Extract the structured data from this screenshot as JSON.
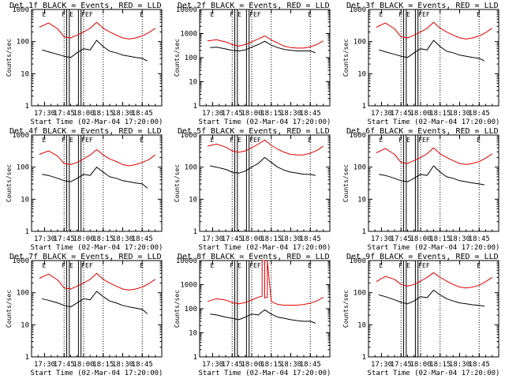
{
  "colors": {
    "events": "#000000",
    "lld": "#e00000",
    "axes": "#000000"
  },
  "time_ticks": [
    "17:30",
    "17:45",
    "18:00",
    "18:15",
    "18:30",
    "18:45"
  ],
  "dotted_lines_times": [
    "17:45",
    "18:00",
    "18:15",
    "18:45"
  ],
  "chart_data": [
    {
      "type": "line",
      "title": "Det 1f BLACK = Events, RED = LLD",
      "xlabel": "Start Time (02-Mar-04 17:20:00)",
      "ylabel": "Counts/sec",
      "yscale": "log",
      "ylim": [
        1,
        1000
      ],
      "yticks": [
        "1",
        "10",
        "100",
        "1000"
      ],
      "flags": [
        "E",
        "F",
        "E",
        "F",
        "E",
        "F",
        "E"
      ],
      "vertical_lines": [
        "17:47",
        "17:49",
        "17:56",
        "17:58"
      ],
      "series": [
        {
          "name": "RED",
          "role": "lld",
          "x": [
            "17:26",
            "17:33",
            "17:40",
            "17:45",
            "17:50",
            "17:55",
            "18:00",
            "18:05",
            "18:10",
            "18:15",
            "18:20",
            "18:25",
            "18:30",
            "18:35",
            "18:40",
            "18:45",
            "18:50",
            "18:55"
          ],
          "values": [
            280,
            380,
            250,
            140,
            130,
            160,
            200,
            260,
            400,
            260,
            200,
            160,
            130,
            120,
            130,
            150,
            190,
            260
          ]
        },
        {
          "name": "BLACK",
          "role": "events",
          "x": [
            "17:28",
            "17:33",
            "17:40",
            "17:45",
            "17:50",
            "17:55",
            "18:00",
            "18:05",
            "18:10",
            "18:15",
            "18:20",
            "18:25",
            "18:30",
            "18:35",
            "18:40",
            "18:45",
            "18:49"
          ],
          "values": [
            55,
            48,
            40,
            35,
            32,
            45,
            60,
            55,
            110,
            70,
            50,
            45,
            38,
            35,
            32,
            30,
            25
          ]
        }
      ]
    },
    {
      "type": "line",
      "title": "Det 2f BLACK = Events, RED = LLD",
      "xlabel": "Start Time (02-Mar-04 17:20:00)",
      "ylabel": "Counts/sec",
      "yscale": "log",
      "ylim": [
        1,
        10000
      ],
      "yticks": [
        "1",
        "10",
        "100",
        "1000",
        "10000"
      ],
      "flags": [
        "E",
        "F",
        "E",
        "F",
        "E",
        "F",
        "E"
      ],
      "vertical_lines": [
        "17:47",
        "17:49",
        "17:56",
        "17:58"
      ],
      "series": [
        {
          "name": "RED",
          "role": "lld",
          "x": [
            "17:26",
            "17:33",
            "17:40",
            "17:45",
            "17:50",
            "17:55",
            "18:00",
            "18:05",
            "18:10",
            "18:15",
            "18:20",
            "18:25",
            "18:30",
            "18:35",
            "18:40",
            "18:45",
            "18:50",
            "18:55"
          ],
          "values": [
            500,
            550,
            450,
            350,
            300,
            350,
            450,
            600,
            800,
            550,
            400,
            300,
            260,
            250,
            250,
            280,
            350,
            500
          ]
        },
        {
          "name": "BLACK",
          "role": "events",
          "x": [
            "17:28",
            "17:33",
            "17:40",
            "17:45",
            "17:50",
            "17:55",
            "18:00",
            "18:05",
            "18:10",
            "18:15",
            "18:20",
            "18:25",
            "18:30",
            "18:35",
            "18:40",
            "18:45",
            "18:49"
          ],
          "values": [
            260,
            270,
            230,
            200,
            190,
            210,
            270,
            350,
            480,
            330,
            260,
            220,
            200,
            190,
            190,
            190,
            160
          ]
        }
      ]
    },
    {
      "type": "line",
      "title": "Det 3f BLACK = Events, RED = LLD",
      "xlabel": "Start Time (02-Mar-04 17:20:00)",
      "ylabel": "Counts/sec",
      "yscale": "log",
      "ylim": [
        1,
        1000
      ],
      "yticks": [
        "1",
        "10",
        "100",
        "1000"
      ],
      "flags": [
        "E",
        "F",
        "E",
        "F",
        "E",
        "F",
        "E"
      ],
      "vertical_lines": [
        "17:47",
        "17:49",
        "17:56",
        "17:58"
      ],
      "series": [
        {
          "name": "RED",
          "role": "lld",
          "x": [
            "17:26",
            "17:33",
            "17:40",
            "17:45",
            "17:50",
            "17:55",
            "18:00",
            "18:05",
            "18:10",
            "18:15",
            "18:20",
            "18:25",
            "18:30",
            "18:35",
            "18:40",
            "18:45",
            "18:50",
            "18:55"
          ],
          "values": [
            280,
            380,
            250,
            140,
            130,
            160,
            200,
            260,
            400,
            260,
            200,
            160,
            130,
            120,
            130,
            150,
            190,
            260
          ]
        },
        {
          "name": "BLACK",
          "role": "events",
          "x": [
            "17:28",
            "17:33",
            "17:40",
            "17:45",
            "17:50",
            "17:55",
            "18:00",
            "18:05",
            "18:10",
            "18:15",
            "18:20",
            "18:25",
            "18:30",
            "18:35",
            "18:40",
            "18:45",
            "18:49"
          ],
          "values": [
            55,
            48,
            40,
            35,
            32,
            45,
            60,
            55,
            110,
            70,
            50,
            45,
            38,
            35,
            32,
            30,
            25
          ]
        }
      ]
    },
    {
      "type": "line",
      "title": "Det 4f BLACK = Events, RED = LLD",
      "xlabel": "Start Time (02-Mar-04 17:20:00)",
      "ylabel": "Counts/sec",
      "yscale": "log",
      "ylim": [
        1,
        1000
      ],
      "yticks": [
        "1",
        "10",
        "100",
        "1000"
      ],
      "flags": [
        "E",
        "F",
        "E",
        "F",
        "E",
        "F",
        "E"
      ],
      "vertical_lines": [
        "17:47",
        "17:49",
        "17:56",
        "17:58"
      ],
      "series": [
        {
          "name": "RED",
          "role": "lld",
          "x": [
            "17:26",
            "17:33",
            "17:40",
            "17:45",
            "17:50",
            "17:55",
            "18:00",
            "18:05",
            "18:10",
            "18:15",
            "18:20",
            "18:25",
            "18:30",
            "18:35",
            "18:40",
            "18:45",
            "18:50",
            "18:55"
          ],
          "values": [
            250,
            320,
            220,
            130,
            120,
            140,
            180,
            240,
            350,
            240,
            180,
            150,
            120,
            110,
            120,
            140,
            170,
            240
          ]
        },
        {
          "name": "BLACK",
          "role": "events",
          "x": [
            "17:28",
            "17:33",
            "17:40",
            "17:45",
            "17:50",
            "17:55",
            "18:00",
            "18:05",
            "18:10",
            "18:15",
            "18:20",
            "18:25",
            "18:30",
            "18:35",
            "18:40",
            "18:45",
            "18:49"
          ],
          "values": [
            60,
            55,
            45,
            38,
            35,
            45,
            60,
            55,
            100,
            70,
            50,
            45,
            38,
            35,
            32,
            30,
            22
          ]
        }
      ]
    },
    {
      "type": "line",
      "title": "Det 5f BLACK = Events, RED = LLD",
      "xlabel": "Start Time (02-Mar-04 17:20:00)",
      "ylabel": "Counts/sec",
      "yscale": "log",
      "ylim": [
        1,
        1000
      ],
      "yticks": [
        "1",
        "10",
        "100",
        "1000"
      ],
      "flags": [
        "E",
        "F",
        "E",
        "F",
        "E",
        "F",
        "E"
      ],
      "vertical_lines": [
        "17:47",
        "17:49",
        "17:56",
        "17:58"
      ],
      "series": [
        {
          "name": "RED",
          "role": "lld",
          "x": [
            "17:26",
            "17:33",
            "17:40",
            "17:45",
            "17:50",
            "17:55",
            "18:00",
            "18:05",
            "18:10",
            "18:15",
            "18:20",
            "18:25",
            "18:30",
            "18:35",
            "18:40",
            "18:45",
            "18:50",
            "18:55"
          ],
          "values": [
            450,
            520,
            420,
            320,
            290,
            320,
            400,
            520,
            700,
            480,
            360,
            290,
            250,
            240,
            240,
            270,
            330,
            450
          ]
        },
        {
          "name": "BLACK",
          "role": "events",
          "x": [
            "17:28",
            "17:33",
            "17:40",
            "17:45",
            "17:50",
            "17:55",
            "18:00",
            "18:05",
            "18:10",
            "18:15",
            "18:20",
            "18:25",
            "18:30",
            "18:35",
            "18:40",
            "18:45",
            "18:49"
          ],
          "values": [
            110,
            100,
            85,
            70,
            65,
            75,
            100,
            130,
            200,
            140,
            100,
            80,
            70,
            65,
            60,
            60,
            55
          ]
        }
      ]
    },
    {
      "type": "line",
      "title": "Det 6f BLACK = Events, RED = LLD",
      "xlabel": "Start Time (02-Mar-04 17:20:00)",
      "ylabel": "Counts/sec",
      "yscale": "log",
      "ylim": [
        1,
        1000
      ],
      "yticks": [
        "1",
        "10",
        "100",
        "1000"
      ],
      "flags": [
        "E",
        "F",
        "E",
        "F",
        "E",
        "F",
        "E"
      ],
      "vertical_lines": [
        "17:47",
        "17:49",
        "17:56",
        "17:58"
      ],
      "series": [
        {
          "name": "RED",
          "role": "lld",
          "x": [
            "17:26",
            "17:33",
            "17:40",
            "17:45",
            "17:50",
            "17:55",
            "18:00",
            "18:05",
            "18:10",
            "18:15",
            "18:20",
            "18:25",
            "18:30",
            "18:35",
            "18:40",
            "18:45",
            "18:50",
            "18:55"
          ],
          "values": [
            280,
            380,
            250,
            140,
            130,
            160,
            200,
            260,
            400,
            260,
            200,
            160,
            130,
            120,
            130,
            150,
            190,
            260
          ]
        },
        {
          "name": "BLACK",
          "role": "events",
          "x": [
            "17:28",
            "17:33",
            "17:40",
            "17:45",
            "17:50",
            "17:55",
            "18:00",
            "18:05",
            "18:10",
            "18:15",
            "18:20",
            "18:25",
            "18:30",
            "18:35",
            "18:40",
            "18:45",
            "18:49"
          ],
          "values": [
            60,
            55,
            45,
            38,
            35,
            45,
            60,
            55,
            110,
            70,
            50,
            45,
            38,
            35,
            32,
            30,
            28
          ]
        }
      ]
    },
    {
      "type": "line",
      "title": "Det 7f BLACK = Events, RED = LLD",
      "xlabel": "Start Time (02-Mar-04 17:20:00)",
      "ylabel": "Counts/sec",
      "yscale": "log",
      "ylim": [
        1,
        1000
      ],
      "yticks": [
        "1",
        "10",
        "100",
        "1000"
      ],
      "flags": [
        "E",
        "F",
        "E",
        "F",
        "E",
        "F",
        "E"
      ],
      "vertical_lines": [
        "17:47",
        "17:49",
        "17:56",
        "17:58"
      ],
      "series": [
        {
          "name": "RED",
          "role": "lld",
          "x": [
            "17:26",
            "17:33",
            "17:40",
            "17:45",
            "17:50",
            "17:55",
            "18:00",
            "18:05",
            "18:10",
            "18:15",
            "18:20",
            "18:25",
            "18:30",
            "18:35",
            "18:40",
            "18:45",
            "18:50",
            "18:55"
          ],
          "values": [
            280,
            380,
            250,
            140,
            130,
            160,
            200,
            260,
            400,
            260,
            200,
            160,
            130,
            120,
            130,
            150,
            190,
            260
          ]
        },
        {
          "name": "BLACK",
          "role": "events",
          "x": [
            "17:28",
            "17:33",
            "17:40",
            "17:45",
            "17:50",
            "17:55",
            "18:00",
            "18:05",
            "18:10",
            "18:15",
            "18:20",
            "18:25",
            "18:30",
            "18:35",
            "18:40",
            "18:45",
            "18:49"
          ],
          "values": [
            65,
            58,
            48,
            40,
            36,
            48,
            65,
            60,
            110,
            75,
            55,
            48,
            40,
            36,
            33,
            30,
            22
          ]
        }
      ]
    },
    {
      "type": "line",
      "title": "Det 8f BLACK = Events, RED = LLD",
      "xlabel": "Start Time (02-Mar-04 17:20:00)",
      "ylabel": "Counts/sec",
      "yscale": "log",
      "ylim": [
        1,
        10000
      ],
      "yticks": [
        "1",
        "10",
        "100",
        "1000",
        "10000"
      ],
      "flags": [
        "E",
        "F",
        "E",
        "F",
        "E",
        "F",
        "E"
      ],
      "vertical_lines": [
        "17:47",
        "17:49",
        "17:56",
        "17:58"
      ],
      "series": [
        {
          "name": "RED",
          "role": "lld",
          "x": [
            "17:26",
            "17:33",
            "17:40",
            "17:45",
            "17:50",
            "17:55",
            "18:00",
            "18:05",
            "18:08",
            "18:08",
            "18:10",
            "18:10",
            "18:12",
            "18:12",
            "18:15",
            "18:20",
            "18:25",
            "18:30",
            "18:35",
            "18:40",
            "18:45",
            "18:50",
            "18:55"
          ],
          "values": [
            200,
            260,
            230,
            180,
            160,
            180,
            230,
            300,
            330,
            10000,
            10000,
            280,
            300,
            10000,
            200,
            150,
            140,
            140,
            140,
            150,
            170,
            210,
            300
          ]
        },
        {
          "name": "BLACK",
          "role": "events",
          "x": [
            "17:28",
            "17:33",
            "17:40",
            "17:45",
            "17:50",
            "17:55",
            "18:00",
            "18:05",
            "18:10",
            "18:15",
            "18:20",
            "18:25",
            "18:30",
            "18:35",
            "18:40",
            "18:45",
            "18:49"
          ],
          "values": [
            60,
            55,
            45,
            40,
            35,
            45,
            60,
            55,
            90,
            60,
            45,
            40,
            35,
            32,
            30,
            30,
            25
          ]
        }
      ]
    },
    {
      "type": "line",
      "title": "Det 9f BLACK = Events, RED = LLD",
      "xlabel": "Start Time (02-Mar-04 17:20:00)",
      "ylabel": "Counts/sec",
      "yscale": "log",
      "ylim": [
        1,
        1000
      ],
      "yticks": [
        "1",
        "10",
        "100",
        "1000"
      ],
      "flags": [
        "E",
        "F",
        "E",
        "F",
        "E",
        "F",
        "E"
      ],
      "vertical_lines": [
        "17:47",
        "17:49",
        "17:56",
        "17:58"
      ],
      "series": [
        {
          "name": "RED",
          "role": "lld",
          "x": [
            "17:26",
            "17:33",
            "17:40",
            "17:45",
            "17:50",
            "17:55",
            "18:00",
            "18:05",
            "18:10",
            "18:15",
            "18:20",
            "18:25",
            "18:30",
            "18:35",
            "18:40",
            "18:45",
            "18:50",
            "18:55"
          ],
          "values": [
            220,
            320,
            260,
            180,
            160,
            180,
            230,
            300,
            420,
            300,
            230,
            180,
            150,
            140,
            150,
            170,
            220,
            300
          ]
        },
        {
          "name": "BLACK",
          "role": "events",
          "x": [
            "17:28",
            "17:33",
            "17:40",
            "17:45",
            "17:50",
            "17:55",
            "18:00",
            "18:05",
            "18:10",
            "18:15",
            "18:20",
            "18:25",
            "18:30",
            "18:35",
            "18:40",
            "18:45",
            "18:49"
          ],
          "values": [
            85,
            75,
            60,
            50,
            45,
            55,
            75,
            70,
            120,
            85,
            65,
            55,
            48,
            45,
            42,
            40,
            38
          ]
        }
      ]
    }
  ]
}
